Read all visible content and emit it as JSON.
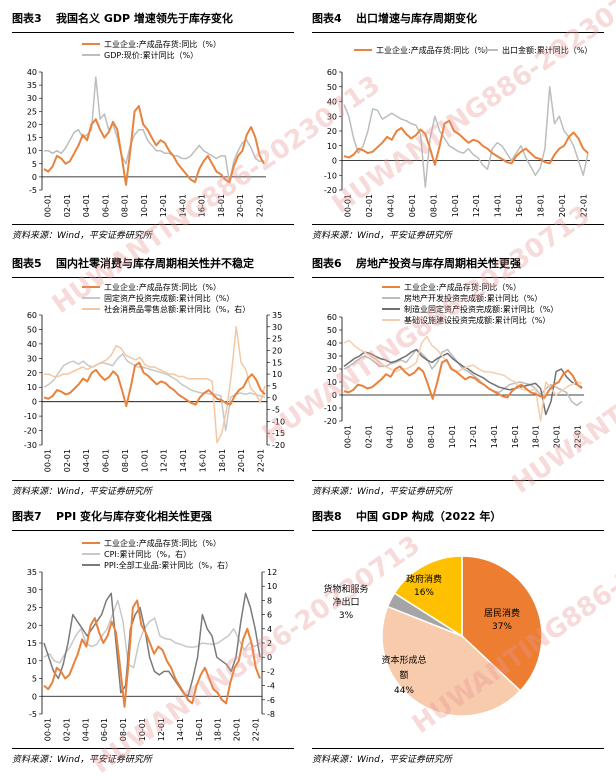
{
  "charts": [
    {
      "id": "fig3",
      "num": "图表3",
      "title": "我国名义 GDP 增速领先于库存变化",
      "source": "资料来源：Wind，平安证券研究所",
      "chart_data": {
        "type": "line",
        "x_ticks": [
          "00-01",
          "02-01",
          "04-01",
          "06-01",
          "08-01",
          "10-01",
          "12-01",
          "14-01",
          "16-01",
          "18-01",
          "20-01",
          "22-01"
        ],
        "ylim": [
          -5,
          40
        ],
        "y_ticks": [
          -5,
          0,
          5,
          10,
          15,
          20,
          25,
          30,
          35,
          40
        ],
        "series": [
          {
            "name": "工业企业:产成品存货:同比（%）",
            "color": "#E8823C",
            "axis": "left",
            "values": [
              3,
              2,
              4,
              8,
              7,
              5,
              6,
              9,
              12,
              16,
              14,
              20,
              22,
              18,
              15,
              17,
              21,
              18,
              8,
              -3,
              10,
              25,
              27,
              20,
              18,
              15,
              12,
              14,
              13,
              10,
              8,
              5,
              3,
              1,
              -1,
              -2,
              3,
              6,
              8,
              5,
              2,
              1,
              -1,
              -2,
              4,
              8,
              10,
              16,
              19,
              15,
              8,
              5
            ]
          },
          {
            "name": "GDP:现价:累计同比（%）",
            "color": "#BDBDBD",
            "axis": "left",
            "values": [
              10,
              10,
              9,
              10,
              9,
              11,
              14,
              17,
              18,
              15,
              16,
              18,
              38,
              22,
              24,
              18,
              20,
              15,
              8,
              5,
              12,
              16,
              18,
              18,
              14,
              12,
              10,
              10,
              9,
              9,
              8,
              8,
              7,
              7,
              8,
              10,
              12,
              10,
              9,
              8,
              7,
              8,
              8,
              -2,
              6,
              10,
              13,
              14,
              11,
              7,
              6,
              6
            ]
          }
        ]
      }
    },
    {
      "id": "fig4",
      "num": "图表4",
      "title": "出口增速与库存周期变化",
      "source": "资料来源：Wind，平安证券研究所",
      "chart_data": {
        "type": "line",
        "x_ticks": [
          "00-01",
          "02-01",
          "04-01",
          "06-01",
          "08-01",
          "10-01",
          "12-01",
          "14-01",
          "16-01",
          "18-01",
          "20-01",
          "22-01"
        ],
        "ylim": [
          -20,
          60
        ],
        "y_ticks": [
          -20,
          -10,
          0,
          10,
          20,
          30,
          40,
          50,
          60
        ],
        "series": [
          {
            "name": "工业企业:产成品存货:同比（%）",
            "color": "#E8823C",
            "axis": "left",
            "values": [
              3,
              2,
              4,
              8,
              7,
              5,
              6,
              9,
              12,
              16,
              14,
              20,
              22,
              18,
              15,
              17,
              21,
              18,
              8,
              -3,
              10,
              25,
              27,
              20,
              18,
              15,
              12,
              14,
              13,
              10,
              8,
              5,
              3,
              1,
              -1,
              -2,
              3,
              6,
              8,
              5,
              2,
              1,
              -1,
              -2,
              4,
              8,
              10,
              16,
              19,
              15,
              8,
              5
            ]
          },
          {
            "name": "出口金额:累计同比（%）",
            "color": "#BDBDBD",
            "axis": "left",
            "values": [
              38,
              30,
              15,
              5,
              10,
              20,
              35,
              34,
              28,
              30,
              32,
              30,
              28,
              27,
              25,
              24,
              18,
              -18,
              15,
              30,
              20,
              15,
              10,
              8,
              6,
              5,
              8,
              4,
              2,
              -3,
              -6,
              8,
              12,
              10,
              5,
              0,
              5,
              10,
              2,
              -4,
              -10,
              -5,
              8,
              50,
              25,
              30,
              20,
              16,
              10,
              0,
              -10,
              5
            ]
          }
        ]
      }
    },
    {
      "id": "fig5",
      "num": "图表5",
      "title": "国内社零消费与库存周期相关性并不稳定",
      "source": "资料来源：Wind，平安证券研究所",
      "chart_data": {
        "type": "line",
        "x_ticks": [
          "00-01",
          "02-01",
          "04-01",
          "06-01",
          "08-01",
          "10-01",
          "12-01",
          "14-01",
          "16-01",
          "18-01",
          "20-01",
          "22-01"
        ],
        "ylim": [
          -30,
          60
        ],
        "y_ticks": [
          -30,
          -20,
          -10,
          0,
          10,
          20,
          30,
          40,
          50,
          60
        ],
        "y2lim": [
          -20,
          35
        ],
        "y2_ticks": [
          -20,
          -15,
          -10,
          -5,
          0,
          5,
          10,
          15,
          20,
          25,
          30,
          35
        ],
        "series": [
          {
            "name": "工业企业:产成品存货:同比（%）",
            "color": "#E8823C",
            "axis": "left",
            "values": [
              3,
              2,
              4,
              8,
              7,
              5,
              6,
              9,
              12,
              16,
              14,
              20,
              22,
              18,
              15,
              17,
              21,
              18,
              8,
              -3,
              10,
              25,
              27,
              20,
              18,
              15,
              12,
              14,
              13,
              10,
              8,
              5,
              3,
              1,
              -1,
              -2,
              3,
              6,
              8,
              5,
              2,
              1,
              -1,
              -2,
              4,
              8,
              10,
              16,
              19,
              15,
              8,
              5
            ]
          },
          {
            "name": "固定资产投资完成额:累计同比（%）",
            "color": "#C8C8C8",
            "axis": "left",
            "values": [
              10,
              12,
              15,
              20,
              25,
              27,
              28,
              26,
              28,
              25,
              24,
              26,
              27,
              26,
              25,
              30,
              33,
              28,
              26,
              24,
              24,
              23,
              22,
              21,
              20,
              19,
              17,
              15,
              12,
              10,
              8,
              7,
              6,
              6,
              5,
              5,
              4,
              -20,
              3,
              5,
              6,
              5,
              6,
              5,
              4,
              3
            ]
          },
          {
            "name": "社会消费品零售总额:累计同比（%，右）",
            "color": "#F3C7A4",
            "axis": "right",
            "values": [
              10,
              10,
              9,
              9,
              10,
              10,
              11,
              12,
              13,
              12,
              13,
              14,
              15,
              16,
              18,
              22,
              21,
              18,
              17,
              16,
              17,
              14,
              13,
              13,
              12,
              11,
              10,
              10,
              9,
              9,
              8,
              8,
              8,
              8,
              8,
              7,
              -19,
              -15,
              -5,
              10,
              30,
              15,
              12,
              4,
              2,
              -2,
              5
            ]
          }
        ]
      }
    },
    {
      "id": "fig6",
      "num": "图表6",
      "title": "房地产投资与库存周期相关性更强",
      "source": "资料来源：Wind，平安证券研究所",
      "chart_data": {
        "type": "line",
        "x_ticks": [
          "00-01",
          "02-01",
          "04-01",
          "06-01",
          "08-01",
          "10-01",
          "12-01",
          "14-01",
          "16-01",
          "18-01",
          "20-01",
          "22-01"
        ],
        "ylim": [
          -20,
          60
        ],
        "y_ticks": [
          -20,
          -10,
          0,
          10,
          20,
          30,
          40,
          50,
          60
        ],
        "series": [
          {
            "name": "工业企业:产成品存货:同比（%）",
            "color": "#E8823C",
            "axis": "left",
            "values": [
              3,
              2,
              4,
              8,
              7,
              5,
              6,
              9,
              12,
              16,
              14,
              20,
              22,
              18,
              15,
              17,
              21,
              18,
              8,
              -3,
              10,
              25,
              27,
              20,
              18,
              15,
              12,
              14,
              13,
              10,
              8,
              5,
              3,
              1,
              -1,
              -2,
              3,
              6,
              8,
              5,
              2,
              1,
              -1,
              -2,
              4,
              8,
              10,
              16,
              19,
              15,
              8,
              5
            ]
          },
          {
            "name": "房地产开发投资完成额:累计同比（%）",
            "color": "#BDBDBD",
            "axis": "left",
            "values": [
              20,
              22,
              25,
              28,
              30,
              28,
              25,
              22,
              22,
              24,
              25,
              27,
              25,
              30,
              35,
              32,
              28,
              20,
              25,
              33,
              35,
              30,
              25,
              20,
              18,
              15,
              12,
              8,
              5,
              3,
              2,
              5,
              8,
              9,
              10,
              9,
              8,
              5,
              0,
              5,
              8,
              6,
              4,
              2,
              -5,
              -8,
              -5
            ]
          },
          {
            "name": "制造业固定资产投资完成额:累计同比（%）",
            "color": "#707070",
            "axis": "left",
            "values": [
              22,
              25,
              28,
              30,
              33,
              32,
              30,
              28,
              27,
              25,
              26,
              28,
              30,
              33,
              35,
              30,
              27,
              25,
              28,
              30,
              32,
              28,
              25,
              22,
              20,
              17,
              15,
              13,
              10,
              8,
              6,
              5,
              4,
              5,
              6,
              7,
              8,
              9,
              5,
              -15,
              -5,
              18,
              20,
              14,
              10,
              8,
              6
            ]
          },
          {
            "name": "基础设施建设投资完成额:累计同比（%）",
            "color": "#F6CDAF",
            "axis": "left",
            "values": [
              40,
              42,
              38,
              35,
              33,
              30,
              28,
              25,
              22,
              20,
              18,
              20,
              20,
              22,
              25,
              40,
              45,
              38,
              35,
              30,
              25,
              20,
              18,
              20,
              22,
              23,
              20,
              18,
              18,
              17,
              16,
              15,
              12,
              10,
              5,
              4,
              3,
              5,
              -20,
              10,
              5,
              0,
              3,
              6,
              8,
              10,
              9
            ]
          }
        ]
      }
    },
    {
      "id": "fig7",
      "num": "图表7",
      "title": "PPI 变化与库存变化相关性更强",
      "source": "资料来源：Wind，平安证券研究所",
      "chart_data": {
        "type": "line",
        "x_ticks": [
          "00-01",
          "02-01",
          "04-01",
          "06-01",
          "08-01",
          "10-01",
          "12-01",
          "14-01",
          "16-01",
          "18-01",
          "20-01",
          "22-01"
        ],
        "ylim": [
          -5,
          35
        ],
        "y_ticks": [
          -5,
          0,
          5,
          10,
          15,
          20,
          25,
          30,
          35
        ],
        "y2lim": [
          -8,
          12
        ],
        "y2_ticks": [
          -8,
          -6,
          -4,
          -2,
          0,
          2,
          4,
          6,
          8,
          10,
          12
        ],
        "series": [
          {
            "name": "工业企业:产成品存货:同比（%）",
            "color": "#E8823C",
            "axis": "left",
            "values": [
              3,
              2,
              4,
              8,
              7,
              5,
              6,
              9,
              12,
              16,
              14,
              20,
              22,
              18,
              15,
              17,
              21,
              18,
              8,
              -3,
              10,
              25,
              27,
              20,
              18,
              15,
              12,
              14,
              13,
              10,
              8,
              5,
              3,
              1,
              -1,
              -2,
              3,
              6,
              8,
              5,
              2,
              1,
              -1,
              -2,
              4,
              8,
              10,
              16,
              19,
              15,
              8,
              5
            ]
          },
          {
            "name": "CPI:累计同比（%，右）",
            "color": "#C8C8C8",
            "axis": "right",
            "values": [
              0,
              0.5,
              -0.5,
              -0.8,
              0.5,
              1.5,
              3,
              4,
              2,
              1.5,
              1.8,
              3,
              4,
              6,
              8,
              5,
              -1,
              -1.5,
              2,
              4,
              5,
              5.5,
              3,
              2.6,
              2.5,
              2,
              1.8,
              1.5,
              1.4,
              1.5,
              2,
              1.9,
              1.8,
              2,
              2.5,
              3,
              4,
              2.5,
              1,
              2,
              1.5,
              2
            ]
          },
          {
            "name": "PPI:全部工业品:累计同比（%，右）",
            "color": "#7A7A7A",
            "axis": "right",
            "values": [
              2,
              0,
              -2,
              -3,
              -1,
              2,
              6,
              5,
              4,
              3,
              4,
              5,
              6,
              8,
              9,
              2,
              -5,
              -4,
              4,
              6,
              7,
              4,
              0,
              -2,
              -2.5,
              -2,
              -2,
              -3,
              -4,
              -5,
              -5.5,
              -3,
              0,
              6,
              4,
              3,
              0,
              -0.5,
              -1,
              -2,
              0,
              5,
              9,
              7,
              4,
              0
            ]
          }
        ]
      }
    },
    {
      "id": "fig8",
      "num": "图表8",
      "title": "中国 GDP 构成（2022 年）",
      "source": "资料来源：Wind，平安证券研究所",
      "chart_data": {
        "type": "pie",
        "slices": [
          {
            "label": "居民消费",
            "value": 37,
            "pct": "37%",
            "color": "#ED7D31"
          },
          {
            "label": "资本形成总额",
            "value": 44,
            "pct": "44%",
            "color": "#F8CBAD"
          },
          {
            "label": "净出口",
            "value": 3,
            "pct": "3%",
            "color": "#A5A5A5"
          },
          {
            "label": "政府消费",
            "value": 16,
            "pct": "16%",
            "color": "#FFC000"
          }
        ],
        "outside_label": "货物和服务"
      }
    }
  ],
  "watermark": "HUWANTING886-20230713"
}
